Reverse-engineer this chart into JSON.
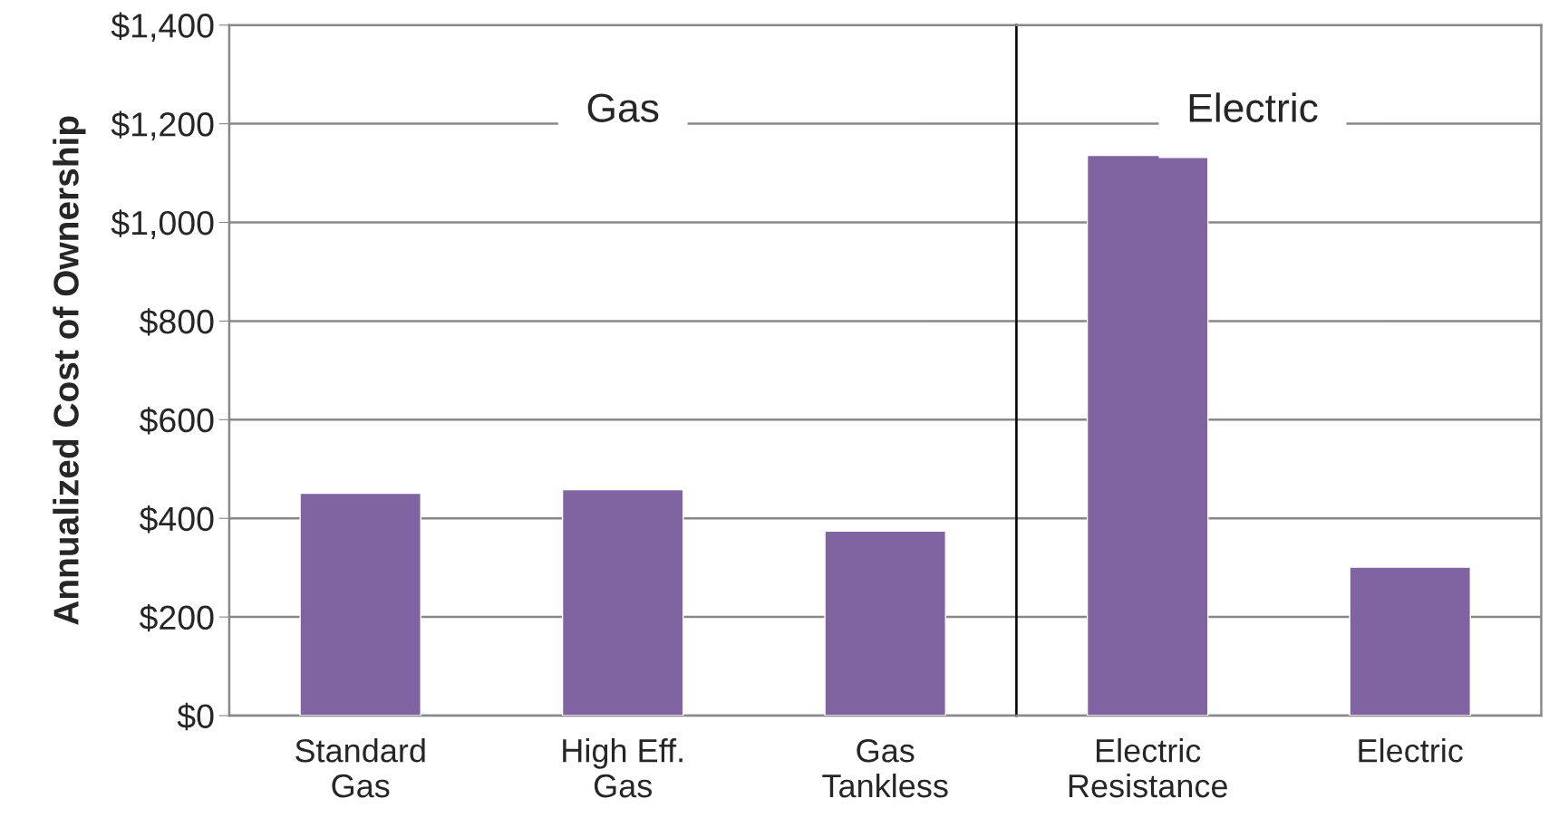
{
  "chart_data": [
    {
      "type": "bar",
      "title": "Gas",
      "ylabel": "Annualized Cost of Ownership",
      "categories": [
        "Standard Gas",
        "High Eff. Gas",
        "Gas Tankless"
      ],
      "values": [
        451,
        458,
        374
      ],
      "color": "#8064a2",
      "ylim": [
        0,
        1400
      ],
      "yticks": [
        {
          "value": 0,
          "label": "$0"
        },
        {
          "value": 200,
          "label": "$200"
        },
        {
          "value": 400,
          "label": "$400"
        },
        {
          "value": 600,
          "label": "$600"
        },
        {
          "value": 800,
          "label": "$800"
        },
        {
          "value": 1000,
          "label": "$1,000"
        },
        {
          "value": 1200,
          "label": "$1,200"
        },
        {
          "value": 1400,
          "label": "$1,400"
        }
      ],
      "grid": "y"
    },
    {
      "type": "bar",
      "title": "Electric",
      "categories": [
        "Electric Resistance",
        "Electric"
      ],
      "values": [
        1136,
        301
      ],
      "color": "#8064a2",
      "ylim": [
        0,
        1400
      ],
      "yticks": [
        0,
        200,
        400,
        600,
        800,
        1000,
        1200,
        1400
      ],
      "grid": "y",
      "tick_labels": "x"
    }
  ]
}
